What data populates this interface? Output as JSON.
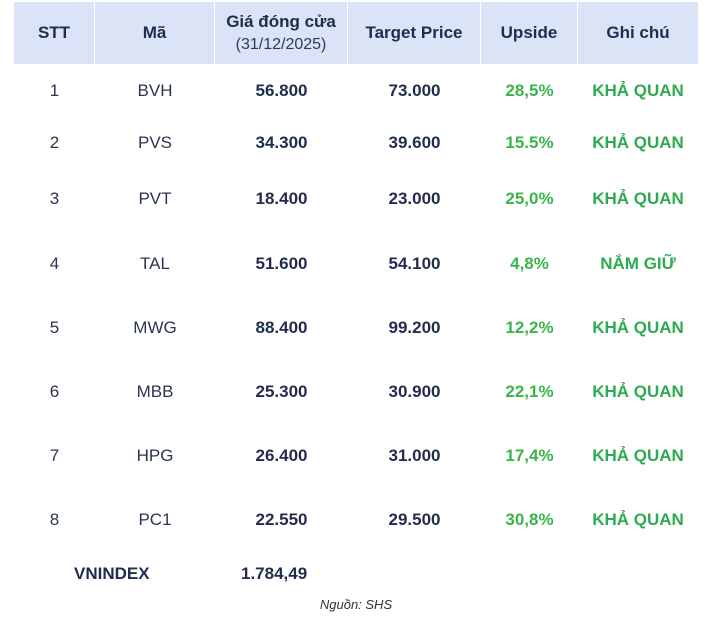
{
  "headers": {
    "stt": "STT",
    "ma": "Mã",
    "gia_dong_cua": "Giá đóng cửa",
    "gia_dong_cua_date": "(31/12/2025)",
    "target_price": "Target Price",
    "upside": "Upside",
    "ghi_chu": "Ghi chú"
  },
  "rows": [
    {
      "stt": "1",
      "ma": "BVH",
      "close": "56.800",
      "target": "73.000",
      "upside": "28,5%",
      "note": "KHẢ QUAN"
    },
    {
      "stt": "2",
      "ma": "PVS",
      "close": "34.300",
      "target": "39.600",
      "upside": "15.5%",
      "note": "KHẢ QUAN"
    },
    {
      "stt": "3",
      "ma": "PVT",
      "close": "18.400",
      "target": "23.000",
      "upside": "25,0%",
      "note": "KHẢ QUAN"
    },
    {
      "stt": "4",
      "ma": "TAL",
      "close": "51.600",
      "target": "54.100",
      "upside": "4,8%",
      "note": "NẮM GIỮ"
    },
    {
      "stt": "5",
      "ma": "MWG",
      "close": "88.400",
      "target": "99.200",
      "upside": "12,2%",
      "note": "KHẢ QUAN"
    },
    {
      "stt": "6",
      "ma": "MBB",
      "close": "25.300",
      "target": "30.900",
      "upside": "22,1%",
      "note": "KHẢ QUAN"
    },
    {
      "stt": "7",
      "ma": "HPG",
      "close": "26.400",
      "target": "31.000",
      "upside": "17,4%",
      "note": "KHẢ QUAN"
    },
    {
      "stt": "8",
      "ma": "PC1",
      "close": "22.550",
      "target": "29.500",
      "upside": "30,8%",
      "note": "KHẢ QUAN"
    }
  ],
  "vnindex": {
    "label": "VNINDEX",
    "value": "1.784,49"
  },
  "source": "Nguồn: SHS",
  "colors": {
    "header_bg": "#dbe3f6",
    "positive": "#3bb54a",
    "text": "#1f2d4d"
  }
}
